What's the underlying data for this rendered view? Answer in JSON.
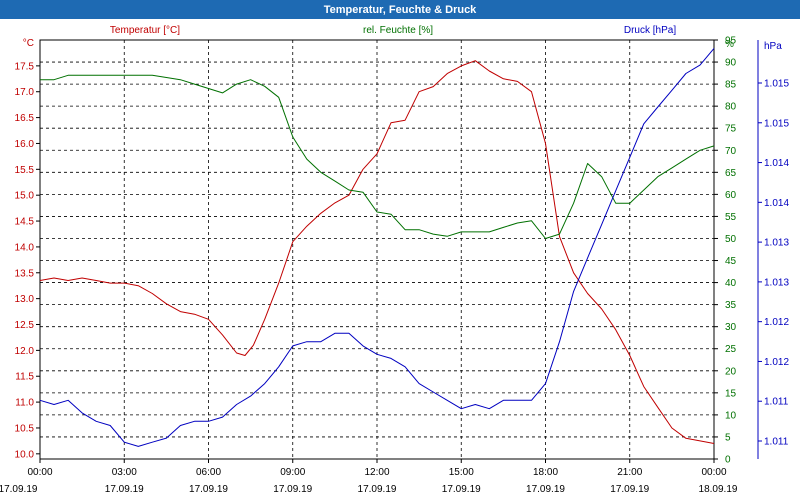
{
  "window": {
    "title": "Temperatur, Feuchte & Druck"
  },
  "colors": {
    "title_bar": "#1e6ab3",
    "temperature": "#c00000",
    "humidity": "#007000",
    "pressure": "#0000c0",
    "axis": "#000000",
    "grid": "#000000"
  },
  "chart_data": {
    "type": "line",
    "title": "Temperatur, Feuchte & Druck",
    "grid": true,
    "legend": "top",
    "x_ticks": [
      {
        "time": "00:00",
        "date": "17.09.19"
      },
      {
        "time": "03:00",
        "date": "17.09.19"
      },
      {
        "time": "06:00",
        "date": "17.09.19"
      },
      {
        "time": "09:00",
        "date": "17.09.19"
      },
      {
        "time": "12:00",
        "date": "17.09.19"
      },
      {
        "time": "15:00",
        "date": "17.09.19"
      },
      {
        "time": "18:00",
        "date": "17.09.19"
      },
      {
        "time": "21:00",
        "date": "17.09.19"
      },
      {
        "time": "00:00",
        "date": "18.09.19"
      }
    ],
    "xlim": [
      0,
      24
    ],
    "axes": {
      "temperature": {
        "label": "Temperatur [°C]",
        "unit": "°C",
        "ylim": [
          9.9,
          18.0
        ],
        "ticks": [
          "10.0",
          "10.5",
          "11.0",
          "11.5",
          "12.0",
          "12.5",
          "13.0",
          "13.5",
          "14.0",
          "14.5",
          "15.0",
          "15.5",
          "16.0",
          "16.5",
          "17.0",
          "17.5"
        ]
      },
      "humidity": {
        "label": "rel. Feuchte [%]",
        "unit": "%",
        "ylim": [
          0,
          95
        ],
        "ticks": [
          "0",
          "5",
          "10",
          "15",
          "20",
          "25",
          "30",
          "35",
          "40",
          "45",
          "50",
          "55",
          "60",
          "65",
          "70",
          "75",
          "80",
          "85",
          "90",
          "95"
        ]
      },
      "pressure": {
        "label": "Druck [hPa]",
        "unit": "hPa",
        "ylim": [
          1010.9,
          1015.9
        ],
        "ticks": [
          "1.011",
          "1.011",
          "1.012",
          "1.012",
          "1.013",
          "1.013",
          "1.014",
          "1.014",
          "1.015",
          "1.015"
        ]
      }
    },
    "series": [
      {
        "name": "Temperatur [°C]",
        "axis": "temperature",
        "x": [
          0,
          0.5,
          1,
          1.5,
          2,
          2.5,
          3,
          3.5,
          4,
          4.5,
          5,
          5.5,
          6,
          6.5,
          7,
          7.3,
          7.6,
          8,
          8.5,
          9,
          9.5,
          10,
          10.5,
          11,
          11.5,
          12,
          12.5,
          13,
          13.5,
          14,
          14.5,
          15,
          15.5,
          16,
          16.5,
          17,
          17.5,
          18,
          18.5,
          19,
          19.5,
          20,
          20.5,
          21,
          21.5,
          22,
          22.5,
          23,
          23.5,
          24
        ],
        "values": [
          13.35,
          13.4,
          13.35,
          13.4,
          13.35,
          13.3,
          13.3,
          13.25,
          13.1,
          12.9,
          12.75,
          12.7,
          12.6,
          12.3,
          11.95,
          11.9,
          12.1,
          12.6,
          13.3,
          14.1,
          14.4,
          14.65,
          14.85,
          15.0,
          15.5,
          15.8,
          16.4,
          16.45,
          17.0,
          17.1,
          17.35,
          17.5,
          17.6,
          17.4,
          17.25,
          17.2,
          17.0,
          16.0,
          14.2,
          13.5,
          13.1,
          12.8,
          12.4,
          11.9,
          11.3,
          10.9,
          10.5,
          10.3,
          10.25,
          10.2
        ]
      },
      {
        "name": "rel. Feuchte [%]",
        "axis": "humidity",
        "x": [
          0,
          0.5,
          1,
          1.5,
          2,
          2.5,
          3,
          3.5,
          4,
          4.5,
          5,
          5.5,
          6,
          6.5,
          7,
          7.5,
          8,
          8.5,
          9,
          9.5,
          10,
          10.5,
          11,
          11.5,
          12,
          12.5,
          13,
          13.5,
          14,
          14.5,
          15,
          15.5,
          16,
          16.5,
          17,
          17.5,
          18,
          18.5,
          19,
          19.5,
          20,
          20.5,
          21,
          21.5,
          22,
          22.5,
          23,
          23.5,
          24
        ],
        "values": [
          86,
          86,
          87,
          87,
          87,
          87,
          87,
          87,
          87,
          86.5,
          86,
          85,
          84,
          83,
          85,
          86,
          84.5,
          82,
          73,
          68,
          65,
          63,
          61,
          60.5,
          56,
          55.5,
          52,
          52,
          51,
          50.5,
          51.5,
          51.5,
          51.5,
          52.5,
          53.5,
          54,
          50,
          51,
          58,
          67,
          64,
          58,
          58,
          61,
          64,
          66,
          68,
          70,
          71
        ]
      },
      {
        "name": "Druck [hPa]",
        "axis": "pressure",
        "x": [
          0,
          0.5,
          1,
          1.5,
          2,
          2.5,
          3,
          3.5,
          4,
          4.5,
          5,
          5.5,
          6,
          6.5,
          7,
          7.5,
          8,
          8.5,
          9,
          9.5,
          10,
          10.5,
          11,
          11.5,
          12,
          12.5,
          13,
          13.5,
          14,
          14.5,
          15,
          15.5,
          16,
          16.5,
          17,
          17.5,
          18,
          18.5,
          19,
          19.5,
          20,
          20.5,
          21,
          21.5,
          22,
          22.5,
          23,
          23.5,
          24
        ],
        "values": [
          1011.6,
          1011.55,
          1011.6,
          1011.45,
          1011.35,
          1011.3,
          1011.1,
          1011.05,
          1011.1,
          1011.15,
          1011.3,
          1011.35,
          1011.35,
          1011.4,
          1011.55,
          1011.65,
          1011.8,
          1012.0,
          1012.25,
          1012.3,
          1012.3,
          1012.4,
          1012.4,
          1012.25,
          1012.15,
          1012.1,
          1012.0,
          1011.8,
          1011.7,
          1011.6,
          1011.5,
          1011.55,
          1011.5,
          1011.6,
          1011.6,
          1011.6,
          1011.8,
          1012.3,
          1012.9,
          1013.3,
          1013.7,
          1014.1,
          1014.5,
          1014.9,
          1015.1,
          1015.3,
          1015.5,
          1015.6,
          1015.8
        ]
      }
    ]
  }
}
